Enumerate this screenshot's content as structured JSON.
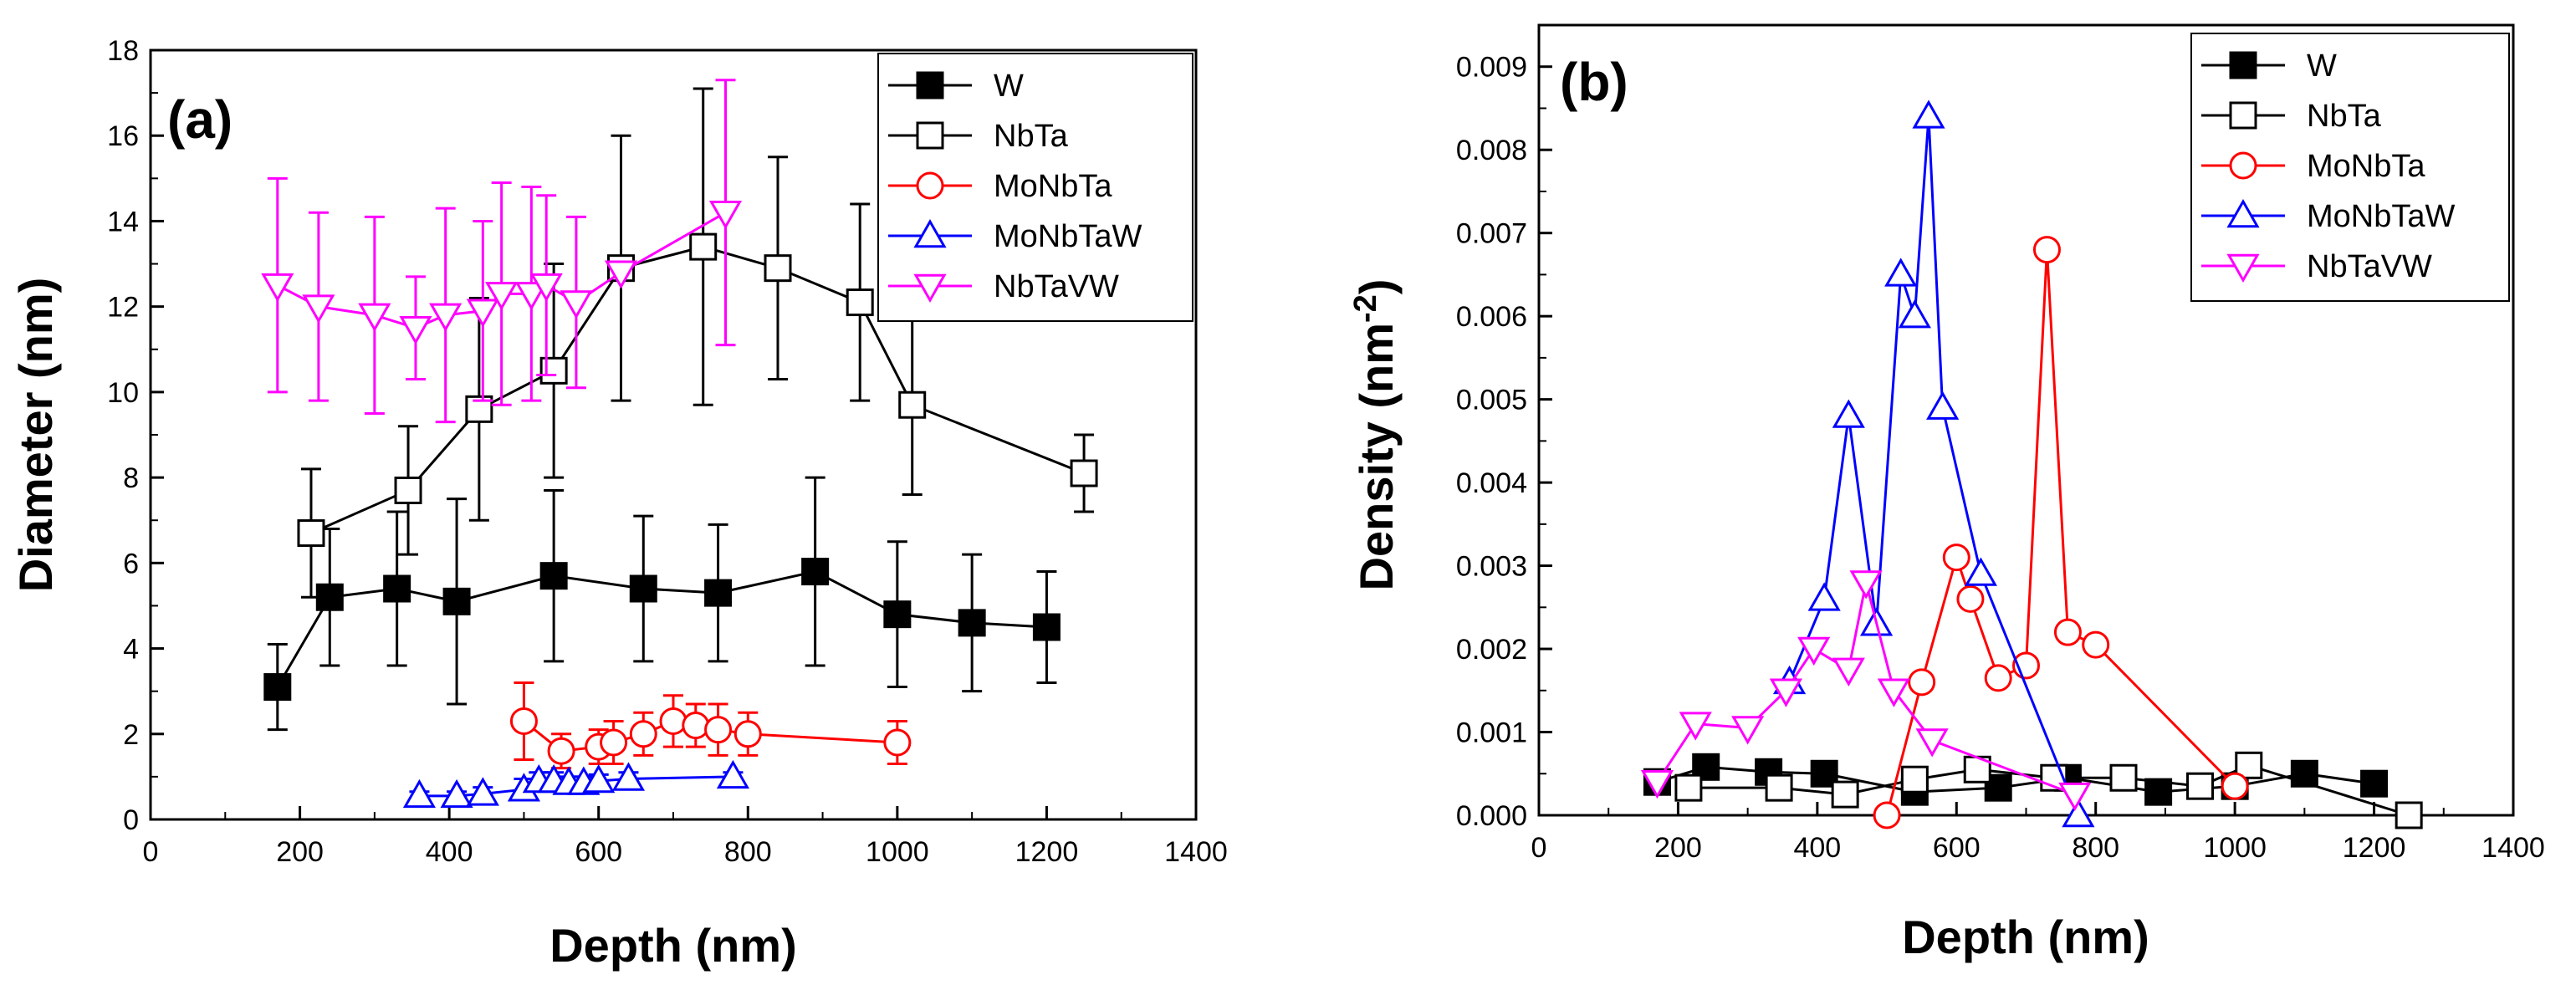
{
  "chart_data": [
    {
      "type": "line",
      "panel_label": "(a)",
      "xlabel": "Depth (nm)",
      "ylabel": "Diameter (nm)",
      "xlim": [
        0,
        1400
      ],
      "ylim": [
        0,
        18
      ],
      "xticks": [
        0,
        200,
        400,
        600,
        800,
        1000,
        1200,
        1400
      ],
      "yticks": [
        0,
        2,
        4,
        6,
        8,
        10,
        12,
        14,
        16,
        18
      ],
      "legend_position": "top-right",
      "series": [
        {
          "name": "W",
          "color": "#000000",
          "marker": "filled-square",
          "x": [
            170,
            240,
            330,
            410,
            540,
            660,
            760,
            890,
            1000,
            1100,
            1200
          ],
          "y": [
            3.1,
            5.2,
            5.4,
            5.1,
            5.7,
            5.4,
            5.3,
            5.8,
            4.8,
            4.6,
            4.5
          ],
          "err": [
            1.0,
            1.6,
            1.8,
            2.4,
            2.0,
            1.7,
            1.6,
            2.2,
            1.7,
            1.6,
            1.3
          ]
        },
        {
          "name": "NbTa",
          "color": "#000000",
          "marker": "open-square",
          "x": [
            215,
            345,
            440,
            540,
            630,
            740,
            840,
            950,
            1020,
            1250
          ],
          "y": [
            6.7,
            7.7,
            9.6,
            10.5,
            12.9,
            13.4,
            12.9,
            12.1,
            9.7,
            8.1
          ],
          "err": [
            1.5,
            1.5,
            2.6,
            2.5,
            3.1,
            3.7,
            2.6,
            2.3,
            2.1,
            0.9
          ]
        },
        {
          "name": "MoNbTa",
          "color": "#ff0000",
          "marker": "open-circle",
          "x": [
            500,
            550,
            600,
            620,
            660,
            700,
            730,
            760,
            800,
            1000
          ],
          "y": [
            2.3,
            1.6,
            1.7,
            1.8,
            2.0,
            2.3,
            2.2,
            2.1,
            2.0,
            1.8
          ],
          "err": [
            0.9,
            0.4,
            0.4,
            0.5,
            0.5,
            0.6,
            0.5,
            0.6,
            0.5,
            0.5
          ]
        },
        {
          "name": "MoNbTaW",
          "color": "#0000ff",
          "marker": "open-triangle-up",
          "x": [
            360,
            410,
            445,
            500,
            520,
            540,
            560,
            580,
            600,
            640,
            780
          ],
          "y": [
            0.55,
            0.55,
            0.6,
            0.7,
            0.9,
            0.9,
            0.85,
            0.85,
            0.9,
            0.95,
            1.0
          ],
          "err": [
            0.1,
            0.1,
            0.15,
            0.25,
            0.2,
            0.2,
            0.15,
            0.15,
            0.15,
            0.15,
            0.1
          ]
        },
        {
          "name": "NbTaVW",
          "color": "#ff00ff",
          "marker": "open-triangle-down",
          "x": [
            170,
            225,
            300,
            355,
            395,
            445,
            470,
            510,
            530,
            570,
            630,
            770
          ],
          "y": [
            12.5,
            12.0,
            11.8,
            11.5,
            11.8,
            11.9,
            12.3,
            12.3,
            12.5,
            12.1,
            12.8,
            14.2
          ],
          "err": [
            2.5,
            2.2,
            2.3,
            1.2,
            2.5,
            2.1,
            2.6,
            2.5,
            2.1,
            2.0,
            0.0,
            3.1
          ]
        }
      ]
    },
    {
      "type": "line",
      "panel_label": "(b)",
      "xlabel": "Depth (nm)",
      "ylabel": "Density (nm",
      "ylabel_superscript": "-2",
      "ylabel_suffix": ")",
      "xlim": [
        0,
        1400
      ],
      "ylim": [
        0,
        0.0095
      ],
      "xticks": [
        0,
        200,
        400,
        600,
        800,
        1000,
        1200,
        1400
      ],
      "ytick_labels": [
        "0.000",
        "0.001",
        "0.002",
        "0.003",
        "0.004",
        "0.005",
        "0.006",
        "0.007",
        "0.008",
        "0.009"
      ],
      "legend_position": "top-right",
      "series": [
        {
          "name": "W",
          "color": "#000000",
          "marker": "filled-square",
          "x": [
            170,
            240,
            330,
            410,
            540,
            660,
            760,
            890,
            1000,
            1100,
            1200
          ],
          "y": [
            0.0004,
            0.00058,
            0.00052,
            0.0005,
            0.00028,
            0.00033,
            0.00045,
            0.00028,
            0.00035,
            0.0005,
            0.00038
          ]
        },
        {
          "name": "NbTa",
          "color": "#000000",
          "marker": "open-square",
          "x": [
            215,
            345,
            440,
            540,
            630,
            740,
            840,
            950,
            1020,
            1250
          ],
          "y": [
            0.00033,
            0.00033,
            0.00025,
            0.00043,
            0.00055,
            0.00045,
            0.00045,
            0.00035,
            0.0006,
            0.0
          ]
        },
        {
          "name": "MoNbTa",
          "color": "#ff0000",
          "marker": "open-circle",
          "x": [
            500,
            550,
            600,
            620,
            660,
            700,
            730,
            760,
            800,
            1000
          ],
          "y": [
            0.0,
            0.0016,
            0.0031,
            0.0026,
            0.00165,
            0.0018,
            0.0068,
            0.0022,
            0.00205,
            0.00035
          ]
        },
        {
          "name": "MoNbTaW",
          "color": "#0000ff",
          "marker": "open-triangle-up",
          "x": [
            360,
            410,
            445,
            485,
            520,
            540,
            560,
            580,
            635,
            775
          ],
          "y": [
            0.0016,
            0.0026,
            0.0048,
            0.0023,
            0.0065,
            0.006,
            0.0084,
            0.0049,
            0.0029,
            0.0
          ]
        },
        {
          "name": "NbTaVW",
          "color": "#ff00ff",
          "marker": "open-triangle-down",
          "x": [
            170,
            225,
            300,
            355,
            395,
            445,
            470,
            510,
            565,
            770
          ],
          "y": [
            0.0004,
            0.0011,
            0.00105,
            0.0015,
            0.002,
            0.00175,
            0.0028,
            0.0015,
            0.0009,
            0.00025
          ]
        }
      ]
    }
  ]
}
